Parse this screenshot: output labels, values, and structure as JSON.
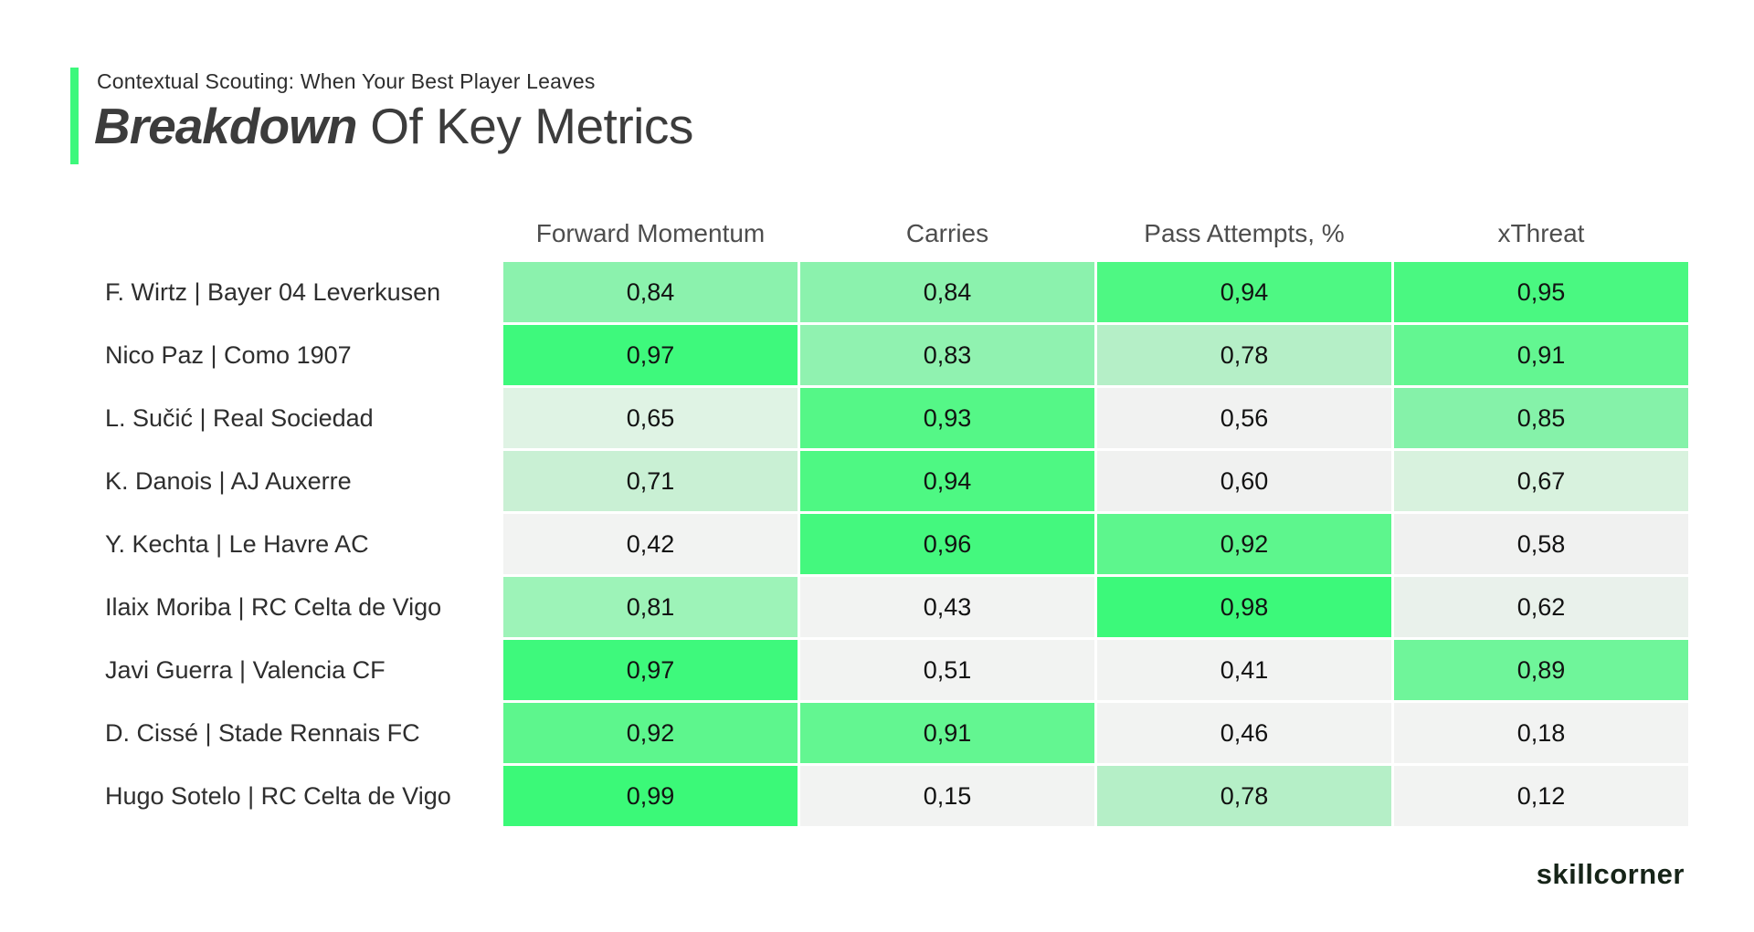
{
  "header": {
    "kicker": "Contextual Scouting: When Your Best Player Leaves",
    "title_emphasis": "Breakdown",
    "title_rest": " Of Key Metrics",
    "accent_color": "#3df87c"
  },
  "table": {
    "columns": [
      "Forward Momentum",
      "Carries",
      "Pass Attempts, %",
      "xThreat"
    ],
    "rows": [
      {
        "player": "F. Wirtz | Bayer 04 Leverkusen",
        "cells": [
          {
            "value": "0,84",
            "color": "#8bf2ad"
          },
          {
            "value": "0,84",
            "color": "#8bf2ad"
          },
          {
            "value": "0,94",
            "color": "#4ef883"
          },
          {
            "value": "0,95",
            "color": "#4af881"
          }
        ]
      },
      {
        "player": "Nico Paz | Como 1907",
        "cells": [
          {
            "value": "0,97",
            "color": "#3ef97c"
          },
          {
            "value": "0,83",
            "color": "#90f2b0"
          },
          {
            "value": "0,78",
            "color": "#b5efc7"
          },
          {
            "value": "0,91",
            "color": "#63f691"
          }
        ]
      },
      {
        "player": "L. Sučić | Real Sociedad",
        "cells": [
          {
            "value": "0,65",
            "color": "#dff3e4"
          },
          {
            "value": "0,93",
            "color": "#55f787"
          },
          {
            "value": "0,56",
            "color": "#f1f2f1"
          },
          {
            "value": "0,85",
            "color": "#85f2a9"
          }
        ]
      },
      {
        "player": "K. Danois | AJ Auxerre",
        "cells": [
          {
            "value": "0,71",
            "color": "#c9f0d4"
          },
          {
            "value": "0,94",
            "color": "#4ef883"
          },
          {
            "value": "0,60",
            "color": "#f0f1f0"
          },
          {
            "value": "0,67",
            "color": "#d8f2de"
          }
        ]
      },
      {
        "player": "Y. Kechta | Le Havre AC",
        "cells": [
          {
            "value": "0,42",
            "color": "#f2f3f2"
          },
          {
            "value": "0,96",
            "color": "#44f87e"
          },
          {
            "value": "0,92",
            "color": "#5df68d"
          },
          {
            "value": "0,58",
            "color": "#f0f1f0"
          }
        ]
      },
      {
        "player": "Ilaix Moriba | RC Celta de Vigo",
        "cells": [
          {
            "value": "0,81",
            "color": "#9df3b8"
          },
          {
            "value": "0,43",
            "color": "#f2f3f2"
          },
          {
            "value": "0,98",
            "color": "#3cf97a"
          },
          {
            "value": "0,62",
            "color": "#e9f1eb"
          }
        ]
      },
      {
        "player": "Javi Guerra | Valencia CF",
        "cells": [
          {
            "value": "0,97",
            "color": "#3ef97c"
          },
          {
            "value": "0,51",
            "color": "#f2f3f2"
          },
          {
            "value": "0,41",
            "color": "#f2f3f2"
          },
          {
            "value": "0,89",
            "color": "#6ff59a"
          }
        ]
      },
      {
        "player": "D. Cissé | Stade Rennais FC",
        "cells": [
          {
            "value": "0,92",
            "color": "#5df68d"
          },
          {
            "value": "0,91",
            "color": "#63f691"
          },
          {
            "value": "0,46",
            "color": "#f2f3f2"
          },
          {
            "value": "0,18",
            "color": "#f2f3f2"
          }
        ]
      },
      {
        "player": "Hugo Sotelo | RC Celta de Vigo",
        "cells": [
          {
            "value": "0,99",
            "color": "#3bf978"
          },
          {
            "value": "0,15",
            "color": "#f2f3f2"
          },
          {
            "value": "0,78",
            "color": "#b5efc7"
          },
          {
            "value": "0,12",
            "color": "#f2f3f2"
          }
        ]
      }
    ]
  },
  "footer": {
    "logo_text": "skillcorner"
  },
  "chart_data": {
    "type": "heatmap",
    "title": "Breakdown Of Key Metrics",
    "subtitle": "Contextual Scouting: When Your Best Player Leaves",
    "columns": [
      "Forward Momentum",
      "Carries",
      "Pass Attempts, %",
      "xThreat"
    ],
    "rows": [
      "F. Wirtz | Bayer 04 Leverkusen",
      "Nico Paz | Como 1907",
      "L. Sučić | Real Sociedad",
      "K. Danois | AJ Auxerre",
      "Y. Kechta | Le Havre AC",
      "Ilaix Moriba | RC Celta de Vigo",
      "Javi Guerra | Valencia CF",
      "D. Cissé | Stade Rennais FC",
      "Hugo Sotelo | RC Celta de Vigo"
    ],
    "values": [
      [
        0.84,
        0.84,
        0.94,
        0.95
      ],
      [
        0.97,
        0.83,
        0.78,
        0.91
      ],
      [
        0.65,
        0.93,
        0.56,
        0.85
      ],
      [
        0.71,
        0.94,
        0.6,
        0.67
      ],
      [
        0.42,
        0.96,
        0.92,
        0.58
      ],
      [
        0.81,
        0.43,
        0.98,
        0.62
      ],
      [
        0.97,
        0.51,
        0.41,
        0.89
      ],
      [
        0.92,
        0.91,
        0.46,
        0.18
      ],
      [
        0.99,
        0.15,
        0.78,
        0.12
      ]
    ],
    "value_format": "comma-decimal",
    "value_range": [
      0,
      1
    ],
    "colormap": {
      "low": "#f2f3f2",
      "high": "#3bf978"
    },
    "grid": false,
    "legend": false
  }
}
